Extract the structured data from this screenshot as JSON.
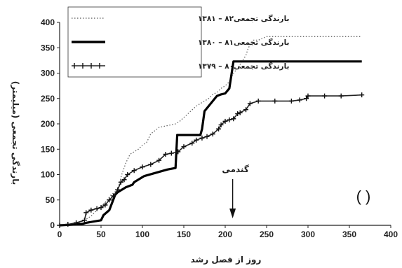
{
  "chart_data": {
    "type": "line",
    "xlabel": "روز از فصل رشد",
    "ylabel": "بارندگی تجمعی (میلیمتر)",
    "xlim": [
      0,
      400
    ],
    "ylim": [
      0,
      400
    ],
    "xticks": [
      "0",
      "50",
      "100",
      "150",
      "200",
      "250",
      "300",
      "350",
      "400"
    ],
    "yticks": [
      "0",
      "50",
      "100",
      "150",
      "200",
      "250",
      "300",
      "350",
      "400"
    ],
    "grid": false,
    "legend_position": "top-left",
    "annotation": {
      "label": "گندمی",
      "x": 209
    },
    "panel_label": "(      )",
    "series": [
      {
        "name": "بارندگی تجمعی۸۲ – ۱۳۸۱",
        "style": "dotted",
        "x": [
          0,
          20,
          30,
          38,
          45,
          55,
          62,
          70,
          75,
          80,
          85,
          95,
          100,
          105,
          110,
          120,
          140,
          145,
          165,
          170,
          175,
          180,
          185,
          190,
          195,
          200,
          205,
          210,
          215,
          220,
          225,
          228,
          234,
          240,
          250,
          365
        ],
        "y": [
          0,
          3,
          10,
          18,
          30,
          45,
          60,
          70,
          100,
          123,
          140,
          150,
          158,
          163,
          180,
          193,
          200,
          205,
          235,
          240,
          245,
          250,
          258,
          262,
          270,
          275,
          283,
          300,
          310,
          322,
          335,
          350,
          365,
          365,
          372,
          372
        ]
      },
      {
        "name": "بارندگی تجمعی۸۱ – ۱۳۸۰",
        "style": "thick",
        "x": [
          0,
          20,
          28,
          32,
          50,
          53,
          60,
          67,
          70,
          75,
          80,
          88,
          90,
          95,
          100,
          102,
          130,
          140,
          142,
          150,
          170,
          172,
          175,
          180,
          185,
          190,
          195,
          200,
          205,
          210,
          365
        ],
        "y": [
          0,
          2,
          3,
          5,
          10,
          20,
          30,
          60,
          65,
          70,
          75,
          80,
          85,
          90,
          95,
          97,
          110,
          113,
          178,
          178,
          178,
          190,
          225,
          235,
          245,
          255,
          258,
          260,
          270,
          323,
          323
        ]
      },
      {
        "name": "بارندگی تجمعی۸۰ – ۱۳۷۹",
        "style": "cross",
        "x": [
          0,
          10,
          20,
          30,
          32,
          38,
          45,
          50,
          55,
          60,
          65,
          70,
          74,
          78,
          82,
          90,
          100,
          110,
          120,
          128,
          135,
          143,
          150,
          160,
          165,
          172,
          178,
          185,
          192,
          195,
          200,
          205,
          210,
          215,
          218,
          225,
          230,
          240,
          260,
          280,
          290,
          298,
          300,
          320,
          340,
          365
        ],
        "y": [
          0,
          2,
          5,
          10,
          25,
          30,
          33,
          35,
          40,
          50,
          58,
          70,
          85,
          90,
          100,
          108,
          115,
          120,
          128,
          140,
          142,
          145,
          155,
          162,
          168,
          172,
          175,
          180,
          190,
          198,
          205,
          208,
          210,
          220,
          222,
          228,
          240,
          245,
          245,
          245,
          247,
          250,
          255,
          255,
          255,
          257
        ]
      }
    ]
  }
}
